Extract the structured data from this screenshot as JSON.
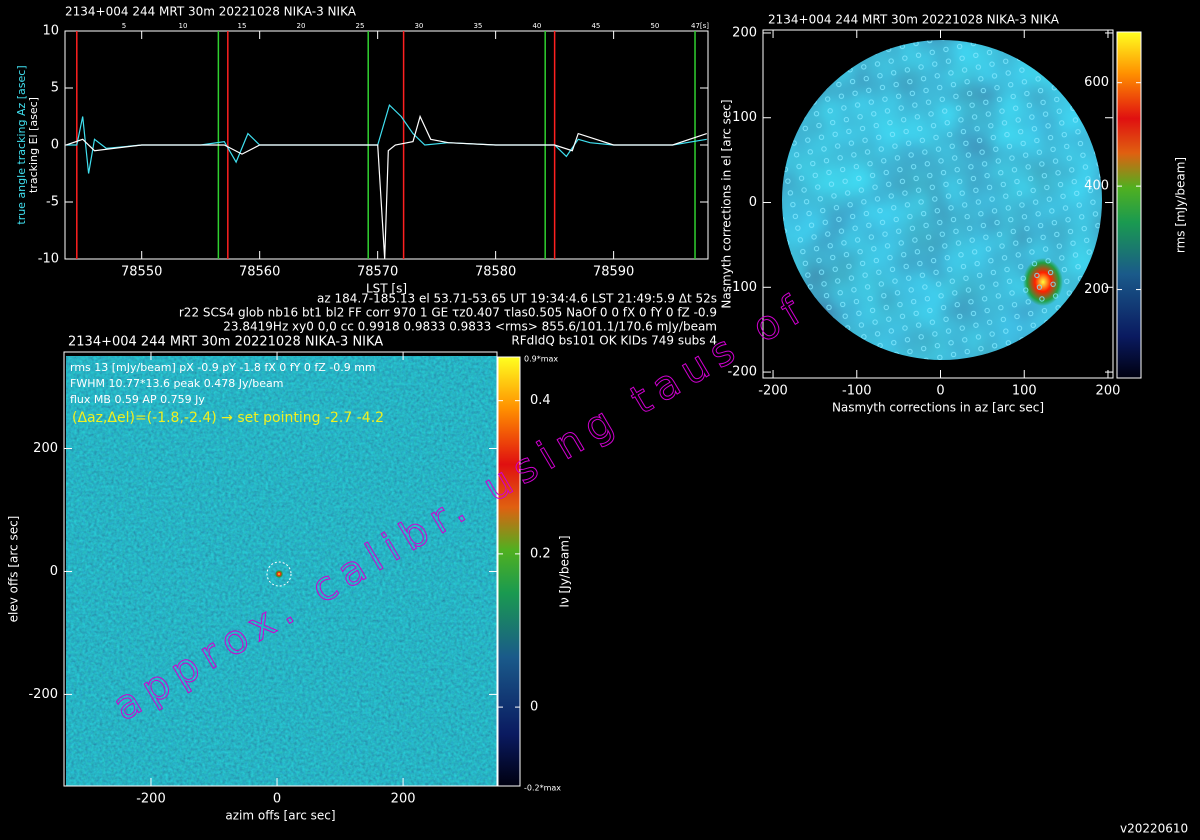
{
  "chart_data": [
    {
      "type": "line",
      "title": "2134+004 244 MRT 30m  20221028 NIKA-3 NIKA",
      "xlabel": "LST [s]",
      "xlim": [
        78543.5,
        78598
      ],
      "xticks": [
        78550,
        78560,
        78570,
        78580,
        78590
      ],
      "x2lim": [
        0,
        54.5
      ],
      "x2ticks": [
        5,
        10,
        15,
        20,
        25,
        30,
        35,
        40,
        45,
        50
      ],
      "x2_end_label": "47[s]",
      "ylim": [
        -10,
        10
      ],
      "yticks": [
        -10,
        -5,
        0,
        5,
        10
      ],
      "series": [
        {
          "name": "true angle tracking Az [asec]",
          "color": "#40e0f0",
          "x": [
            78543.6,
            78544.5,
            78545.0,
            78545.5,
            78546,
            78547,
            78550,
            78555,
            78557,
            78558,
            78559,
            78560,
            78565,
            78570,
            78571,
            78572,
            78573,
            78574,
            78576,
            78580,
            78585,
            78586,
            78587,
            78588,
            78590,
            78595,
            78597.9
          ],
          "values": [
            0,
            0,
            2.5,
            -2.5,
            0.5,
            -0.3,
            0,
            0,
            0.3,
            -1.5,
            1,
            0,
            0,
            0,
            3.5,
            2.5,
            1,
            0,
            0.2,
            0,
            0,
            -1,
            0.5,
            0.2,
            0,
            0,
            0.5
          ]
        },
        {
          "name": "tracking El [asec]",
          "color": "#ffffff",
          "x": [
            78543.6,
            78545,
            78546,
            78550,
            78557,
            78558.5,
            78560,
            78570,
            78570.6,
            78570.9,
            78571.5,
            78573,
            78573.6,
            78574.5,
            78576,
            78580,
            78585,
            78586.5,
            78587,
            78590,
            78595,
            78597.9
          ],
          "values": [
            0,
            0.5,
            -0.5,
            0,
            0,
            -0.8,
            0,
            0,
            -10,
            -0.5,
            0,
            0.3,
            2.5,
            0.5,
            0.2,
            0,
            0,
            -0.5,
            1,
            0,
            0,
            1
          ]
        }
      ],
      "vlines": [
        {
          "color": "#ff2020",
          "x": [
            78544.5,
            78557.3,
            78572.2,
            78585.0
          ]
        },
        {
          "color": "#30d030",
          "x": [
            78556.5,
            78569.2,
            78584.2,
            78596.9
          ]
        }
      ],
      "info": [
        "az 184.7-185.13 el 53.71-53.65 UT 19:34:4.6 LST 21:49:5.9 Δt 52s",
        "r22 SCS4 glob nb16 bt1 bl2 FF corr 970 1 GE τz0.407 τlas0.505 NaOf 0 0 fX 0 fY 0 fZ -0.9",
        "23.8419Hz xy0 0,0 cc 0.9918 0.9833 0.9833 <rms> 855.6/101.1/170.6 mJy/beam",
        "RFdIdQ bs101 OK KIDs 749 subs 4"
      ]
    },
    {
      "type": "heatmap",
      "title": "2134+004 244 MRT 30m  20221028 NIKA-3 NIKA",
      "xlabel": "azim offs [arc sec]",
      "ylabel": "elev offs [arc sec]",
      "xlim": [
        -338,
        349
      ],
      "xticks": [
        -200,
        0,
        200
      ],
      "ylim": [
        -349,
        357
      ],
      "yticks": [
        -200,
        0,
        200
      ],
      "clabel": "Iν [Jy/beam]",
      "clim": [
        -0.103,
        0.457
      ],
      "cticks": [
        0,
        0.2,
        0.4
      ],
      "clim_labels": [
        "-0.2*max",
        "0.9*max"
      ],
      "info": [
        "rms 13 [mJy/beam] pX -0.9 pY -1.8 fX 0 fY 0 fZ -0.9 mm",
        "FWHM 10.77*13.6 peak 0.478 Jy/beam",
        "flux MB 0.59 AP 0.759 Jy"
      ],
      "pointing": "(Δaz,Δel)=(-1.8,-2.4) → set pointing -2.7 -4.2"
    },
    {
      "type": "heatmap",
      "title": "2134+004 244 MRT 30m  20221028 NIKA-3 NIKA",
      "xlabel": "Nasmyth corrections in az [arc sec]",
      "ylabel": "Nasmyth corrections in el [arc sec]",
      "xlim": [
        -212,
        206
      ],
      "xticks": [
        -200,
        -100,
        0,
        100,
        200
      ],
      "ylim": [
        -207,
        203.5
      ],
      "yticks": [
        -200,
        -100,
        0,
        100,
        200
      ],
      "clabel": "rms [mJy/beam]",
      "clim": [
        29,
        698
      ],
      "cticks": [
        200,
        400,
        600
      ]
    }
  ],
  "watermark": "approx. calibr. using taus of",
  "version": "v20220610"
}
